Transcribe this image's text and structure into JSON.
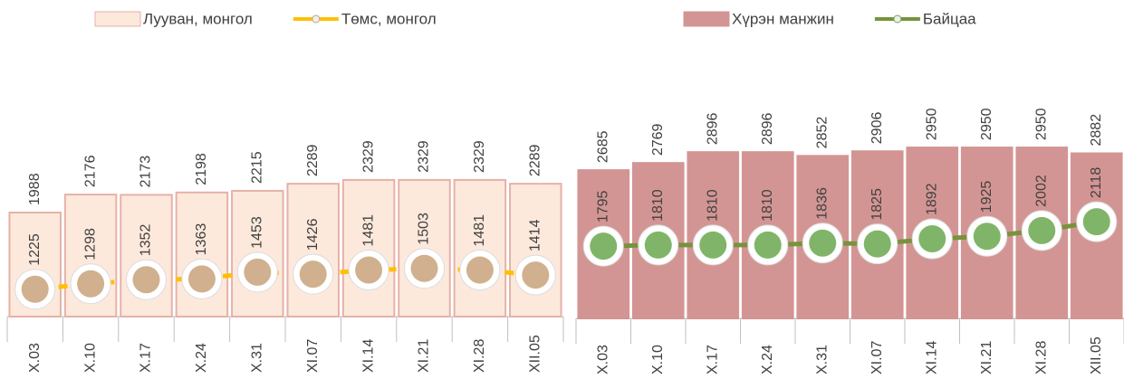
{
  "chart_data": [
    {
      "type": "bar",
      "categories": [
        "X.03",
        "X.10",
        "X.17",
        "X.24",
        "X.31",
        "XI.07",
        "XI.14",
        "XI.21",
        "XI.28",
        "XII.05"
      ],
      "series": [
        {
          "name": "Лууван, монгол",
          "type": "bar",
          "color": "#fde9dc",
          "edge": "#e6b1a7",
          "values": [
            1988,
            2176,
            2173,
            2198,
            2215,
            2289,
            2329,
            2329,
            2329,
            2289
          ]
        },
        {
          "name": "Төмс, монгол",
          "type": "line",
          "axis": "y2",
          "color": "#ffc000",
          "marker": "#c8a27a",
          "values": [
            1225,
            1298,
            1352,
            1363,
            1453,
            1426,
            1481,
            1503,
            1481,
            1414
          ]
        }
      ],
      "ylim": [
        900,
        3000
      ],
      "y2lim": [
        860,
        3540
      ]
    },
    {
      "type": "bar",
      "categories": [
        "X.03",
        "X.10",
        "X.17",
        "X.24",
        "X.31",
        "XI.07",
        "XI.14",
        "XI.21",
        "XI.28",
        "XII.05"
      ],
      "series": [
        {
          "name": "Хүрэн манжин",
          "type": "bar",
          "color": "#d39593",
          "edge": "#d39593",
          "values": [
            2685,
            2769,
            2896,
            2896,
            2852,
            2906,
            2950,
            2950,
            2950,
            2882
          ]
        },
        {
          "name": "Байцаа",
          "type": "line",
          "axis": "y2",
          "color": "#77933c",
          "marker": "#6aa84f",
          "values": [
            1795,
            1810,
            1810,
            1810,
            1836,
            1825,
            1892,
            1925,
            2002,
            2118
          ]
        }
      ],
      "ylim": [
        950,
        3300
      ],
      "y2lim": [
        840,
        3495
      ]
    }
  ]
}
